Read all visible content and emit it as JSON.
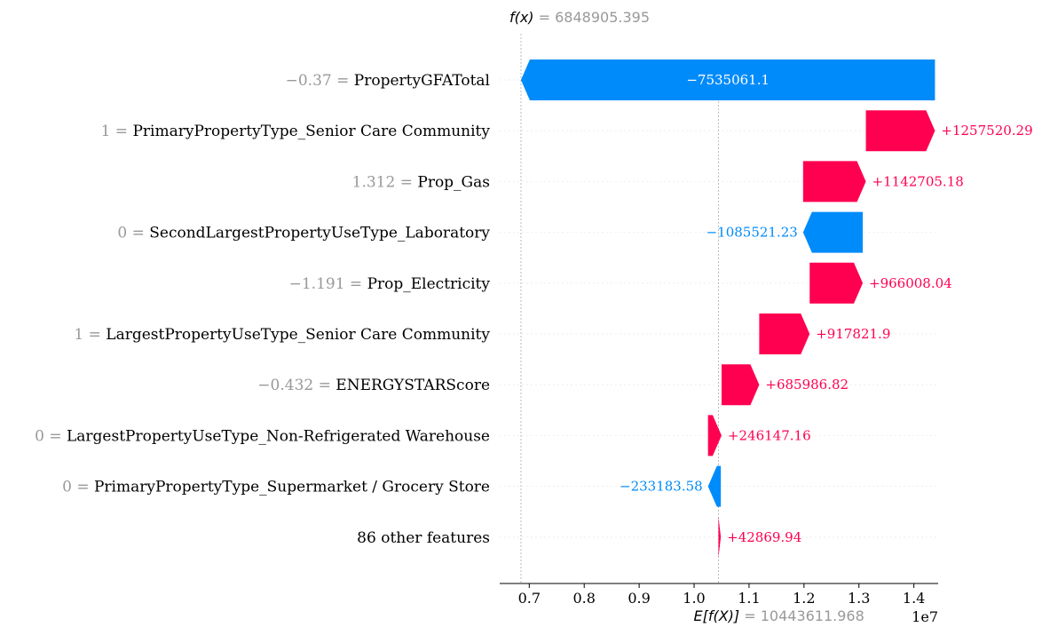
{
  "chart_data": {
    "type": "waterfall",
    "fx_label": "f(x)",
    "fx_value": "6848905.395",
    "efx_label": "E[f(X)]",
    "efx_value": "10443611.968",
    "base_value": 10443611.968,
    "axis_multiplier": "1e7",
    "xlim": [
      0.6462,
      1.4442
    ],
    "xticks": [
      "0.7",
      "0.8",
      "0.9",
      "1.0",
      "1.1",
      "1.2",
      "1.3",
      "1.4"
    ],
    "tick_values": [
      0.7,
      0.8,
      0.9,
      1.0,
      1.1,
      1.2,
      1.3,
      1.4
    ],
    "features": [
      {
        "value": "−0.37",
        "eq": " = ",
        "name": "PropertyGFATotal",
        "shap": -7535061.1,
        "label": "−7535061.1",
        "label_inside": true
      },
      {
        "value": "1",
        "eq": " = ",
        "name": "PrimaryPropertyType_Senior Care Community",
        "shap": 1257520.29,
        "label": "+1257520.29",
        "label_inside": false
      },
      {
        "value": "1.312",
        "eq": " = ",
        "name": "Prop_Gas",
        "shap": 1142705.18,
        "label": "+1142705.18",
        "label_inside": false
      },
      {
        "value": "0",
        "eq": " = ",
        "name": "SecondLargestPropertyUseType_Laboratory",
        "shap": -1085521.23,
        "label": "−1085521.23",
        "label_inside": false
      },
      {
        "value": "−1.191",
        "eq": " = ",
        "name": "Prop_Electricity",
        "shap": 966008.04,
        "label": "+966008.04",
        "label_inside": false
      },
      {
        "value": "1",
        "eq": " = ",
        "name": "LargestPropertyUseType_Senior Care Community",
        "shap": 917821.9,
        "label": "+917821.9",
        "label_inside": false
      },
      {
        "value": "−0.432",
        "eq": " = ",
        "name": "ENERGYSTARScore",
        "shap": 685986.82,
        "label": "+685986.82",
        "label_inside": false
      },
      {
        "value": "0",
        "eq": " = ",
        "name": "LargestPropertyUseType_Non-Refrigerated Warehouse",
        "shap": 246147.16,
        "label": "+246147.16",
        "label_inside": false
      },
      {
        "value": "0",
        "eq": " = ",
        "name": "PrimaryPropertyType_Supermarket / Grocery Store",
        "shap": -233183.58,
        "label": "−233183.58",
        "label_inside": false
      },
      {
        "value": "",
        "eq": "",
        "name": "86 other features",
        "shap": 42869.94,
        "label": "+42869.94",
        "label_inside": false
      }
    ],
    "colors": {
      "positive": "#ff0051",
      "negative": "#008bfb",
      "muted": "#999999",
      "grid": "#eeeeee",
      "axis": "#000000"
    }
  }
}
